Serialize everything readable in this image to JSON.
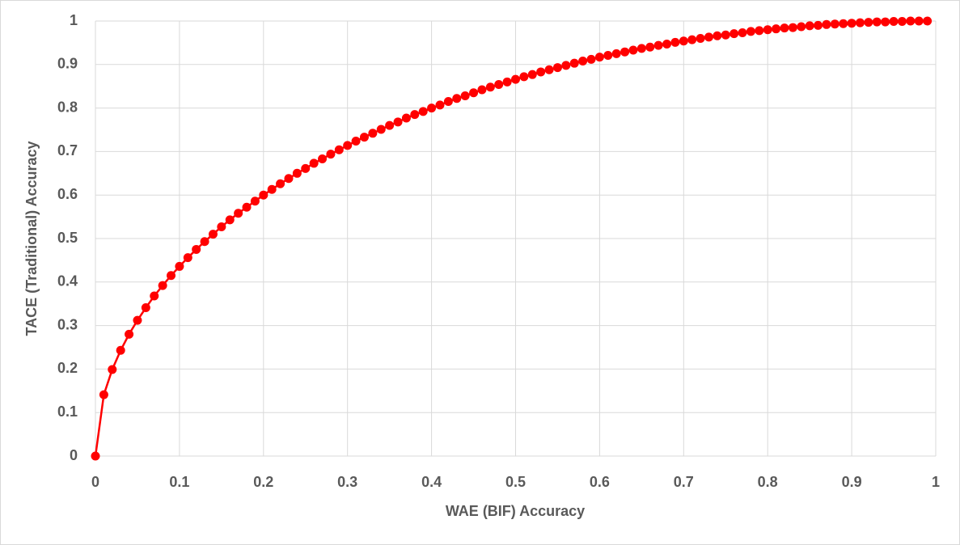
{
  "chart_data": {
    "type": "line",
    "x_label": "WAE (BIF) Accuracy",
    "y_label": "TACE (Traditional) Accuracy",
    "x": [
      0,
      0.01,
      0.02,
      0.03,
      0.04,
      0.05,
      0.06,
      0.07,
      0.08,
      0.09,
      0.1,
      0.11,
      0.12,
      0.13,
      0.14,
      0.15,
      0.16,
      0.17,
      0.18,
      0.19,
      0.2,
      0.21,
      0.22,
      0.23,
      0.24,
      0.25,
      0.26,
      0.27,
      0.28,
      0.29,
      0.3,
      0.31,
      0.32,
      0.33,
      0.34,
      0.35,
      0.36,
      0.37,
      0.38,
      0.39,
      0.4,
      0.41,
      0.42,
      0.43,
      0.44,
      0.45,
      0.46,
      0.47,
      0.48,
      0.49,
      0.5,
      0.51,
      0.52,
      0.53,
      0.54,
      0.55,
      0.56,
      0.57,
      0.58,
      0.59,
      0.6,
      0.61,
      0.62,
      0.63,
      0.64,
      0.65,
      0.66,
      0.67,
      0.68,
      0.69,
      0.7,
      0.71,
      0.72,
      0.73,
      0.74,
      0.75,
      0.76,
      0.77,
      0.78,
      0.79,
      0.8,
      0.81,
      0.82,
      0.83,
      0.84,
      0.85,
      0.86,
      0.87,
      0.88,
      0.89,
      0.9,
      0.91,
      0.92,
      0.93,
      0.94,
      0.95,
      0.96,
      0.97,
      0.98,
      0.99
    ],
    "series": [
      {
        "color": "#ff0000",
        "values": [
          0,
          0.141,
          0.199,
          0.243,
          0.28,
          0.312,
          0.341,
          0.368,
          0.392,
          0.415,
          0.436,
          0.456,
          0.475,
          0.493,
          0.51,
          0.527,
          0.543,
          0.558,
          0.572,
          0.586,
          0.6,
          0.613,
          0.626,
          0.638,
          0.65,
          0.661,
          0.673,
          0.683,
          0.694,
          0.704,
          0.714,
          0.724,
          0.733,
          0.742,
          0.751,
          0.76,
          0.768,
          0.777,
          0.785,
          0.792,
          0.8,
          0.807,
          0.815,
          0.822,
          0.828,
          0.835,
          0.842,
          0.848,
          0.854,
          0.86,
          0.866,
          0.872,
          0.877,
          0.883,
          0.888,
          0.893,
          0.898,
          0.903,
          0.908,
          0.912,
          0.917,
          0.921,
          0.925,
          0.929,
          0.933,
          0.937,
          0.94,
          0.944,
          0.947,
          0.951,
          0.954,
          0.957,
          0.96,
          0.963,
          0.966,
          0.968,
          0.971,
          0.973,
          0.976,
          0.978,
          0.98,
          0.982,
          0.984,
          0.985,
          0.987,
          0.989,
          0.99,
          0.992,
          0.993,
          0.994,
          0.995,
          0.996,
          0.997,
          0.998,
          0.998,
          0.999,
          0.999,
          1.0,
          1.0,
          1.0
        ]
      }
    ],
    "xlim": [
      0,
      1
    ],
    "ylim": [
      0,
      1
    ],
    "xticks": [
      0,
      0.1,
      0.2,
      0.3,
      0.4,
      0.5,
      0.6,
      0.7,
      0.8,
      0.9,
      1
    ],
    "yticks": [
      0,
      0.1,
      0.2,
      0.3,
      0.4,
      0.5,
      0.6,
      0.7,
      0.8,
      0.9,
      1
    ],
    "grid": true,
    "markers": true
  }
}
